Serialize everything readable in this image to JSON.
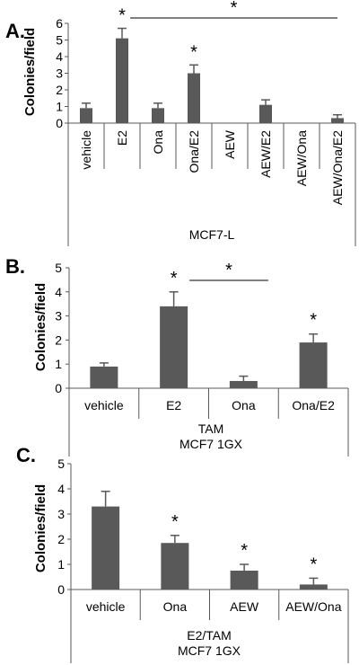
{
  "colors": {
    "bar": "#595959",
    "axis": "#595959",
    "text": "#000000"
  },
  "chart_data": [
    {
      "type": "bar",
      "panel_label": "A.",
      "ylabel": "Colonies/field",
      "xlabel": "",
      "footer_lines": [
        "MCF7-L"
      ],
      "categories": [
        "vehicle",
        "E2",
        "Ona",
        "Ona/E2",
        "AEW",
        "AEW/E2",
        "AEW/Ona",
        "AEW/Ona/E2"
      ],
      "values": [
        0.9,
        5.1,
        0.9,
        3.0,
        0.0,
        1.1,
        0.0,
        0.3
      ],
      "errors": [
        0.3,
        0.6,
        0.3,
        0.5,
        0.0,
        0.3,
        0.0,
        0.2
      ],
      "ylim": [
        0,
        6
      ],
      "yticks": [
        0,
        1,
        2,
        3,
        4,
        5,
        6
      ],
      "star_text": "*",
      "stars": [
        1,
        3
      ],
      "bracket": {
        "from": 1,
        "to": 7,
        "star": "*"
      },
      "vertical_labels": true
    },
    {
      "type": "bar",
      "panel_label": "B.",
      "ylabel": "Colonies/field",
      "xlabel": "",
      "footer_lines": [
        "TAM",
        "MCF7 1GX"
      ],
      "categories": [
        "vehicle",
        "E2",
        "Ona",
        "Ona/E2"
      ],
      "values": [
        0.9,
        3.4,
        0.3,
        1.9
      ],
      "errors": [
        0.15,
        0.6,
        0.2,
        0.35
      ],
      "ylim": [
        0,
        5
      ],
      "yticks": [
        0,
        1,
        2,
        3,
        4,
        5
      ],
      "star_text": "*",
      "stars": [
        1,
        3
      ],
      "bracket": {
        "from": 1,
        "to": 2,
        "star": "*"
      },
      "vertical_labels": false
    },
    {
      "type": "bar",
      "panel_label": "C.",
      "ylabel": "Colonies/field",
      "xlabel": "",
      "footer_lines": [
        "E2/TAM",
        "MCF7 1GX"
      ],
      "categories": [
        "vehicle",
        "Ona",
        "AEW",
        "AEW/Ona"
      ],
      "values": [
        3.3,
        1.85,
        0.75,
        0.2
      ],
      "errors": [
        0.6,
        0.3,
        0.25,
        0.25
      ],
      "ylim": [
        0,
        5
      ],
      "yticks": [
        0,
        1,
        2,
        3,
        4,
        5
      ],
      "star_text": "*",
      "stars": [
        1,
        2,
        3
      ],
      "bracket": null,
      "vertical_labels": false
    }
  ]
}
